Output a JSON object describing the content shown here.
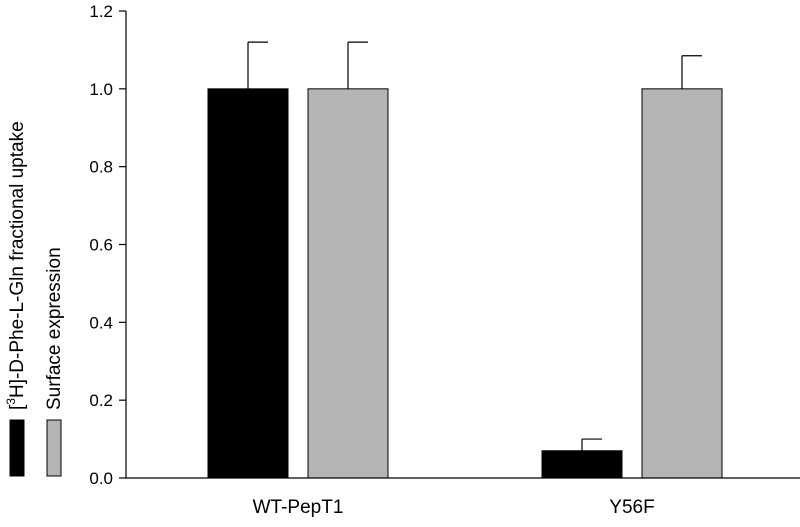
{
  "chart_data": {
    "type": "bar",
    "categories": [
      "WT-PepT1",
      "Y56F"
    ],
    "series": [
      {
        "name": "[3H]-D-Phe-L-Gln fractional uptake",
        "color": "#000000",
        "values": [
          1.0,
          0.07
        ],
        "errors": [
          0.12,
          0.03
        ]
      },
      {
        "name": "Surface expression",
        "color": "#b4b4b4",
        "values": [
          1.0,
          1.0
        ],
        "errors": [
          0.12,
          0.085
        ]
      }
    ],
    "ylim": [
      0,
      1.2
    ],
    "yticks": [
      "0.0",
      "0.2",
      "0.4",
      "0.6",
      "0.8",
      "1.0",
      "1.2"
    ],
    "grid": false,
    "legend": "left, vertical along y-axis",
    "ylabel_lines": [
      {
        "prefix": "[",
        "sup": "3",
        "rest": "H]-D-Phe-L-Gln fractional uptake",
        "swatch_color": "#000000"
      },
      {
        "prefix": "",
        "sup": "",
        "rest": "Surface expression",
        "swatch_color": "#b4b4b4"
      }
    ]
  }
}
